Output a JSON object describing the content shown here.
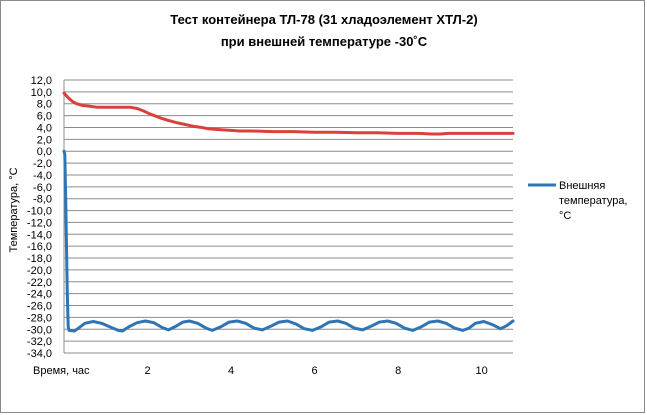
{
  "chart_data": {
    "type": "line",
    "title_lines": [
      "Тест контейнера ТЛ-78 (31 хладоэлемент ХТЛ-2)",
      "при внешней температуре -30˚С"
    ],
    "xlabel": "Время, час",
    "ylabel": "Температура, °С",
    "xlim": [
      0,
      10.75
    ],
    "ylim": [
      -34,
      12
    ],
    "y_ticks": [
      "12,0",
      "10,0",
      "8,0",
      "6,0",
      "4,0",
      "2,0",
      "0,0",
      "-2,0",
      "-4,0",
      "-6,0",
      "-8,0",
      "-10,0",
      "-12,0",
      "-14,0",
      "-16,0",
      "-18,0",
      "-20,0",
      "-22,0",
      "-24,0",
      "-26,0",
      "-28,0",
      "-30,0",
      "-32,0",
      "-34,0"
    ],
    "x_ticks": [
      {
        "value": 2,
        "label": "2"
      },
      {
        "value": 4,
        "label": "4"
      },
      {
        "value": 6,
        "label": "6"
      },
      {
        "value": 8,
        "label": "8"
      },
      {
        "value": 10,
        "label": "10"
      }
    ],
    "grid": "horizontal",
    "legend_position": "right",
    "series": [
      {
        "name": "Внешняя температура, °С",
        "legend_lines": [
          "Внешняя",
          "температура,",
          "°С"
        ],
        "color": "#2E75B6",
        "points": [
          [
            0,
            0
          ],
          [
            0.02,
            -0.5
          ],
          [
            0.04,
            -8
          ],
          [
            0.06,
            -16
          ],
          [
            0.08,
            -24
          ],
          [
            0.1,
            -29.5
          ],
          [
            0.12,
            -30.2
          ],
          [
            0.25,
            -30.3
          ],
          [
            0.35,
            -29.8
          ],
          [
            0.5,
            -29.0
          ],
          [
            0.7,
            -28.7
          ],
          [
            0.9,
            -29.0
          ],
          [
            1.1,
            -29.6
          ],
          [
            1.3,
            -30.2
          ],
          [
            1.4,
            -30.3
          ],
          [
            1.55,
            -29.6
          ],
          [
            1.75,
            -28.9
          ],
          [
            1.95,
            -28.6
          ],
          [
            2.15,
            -28.9
          ],
          [
            2.35,
            -29.7
          ],
          [
            2.5,
            -30.1
          ],
          [
            2.65,
            -29.6
          ],
          [
            2.85,
            -28.8
          ],
          [
            3.0,
            -28.6
          ],
          [
            3.2,
            -29.0
          ],
          [
            3.4,
            -29.8
          ],
          [
            3.55,
            -30.2
          ],
          [
            3.75,
            -29.6
          ],
          [
            3.95,
            -28.8
          ],
          [
            4.15,
            -28.6
          ],
          [
            4.35,
            -29.0
          ],
          [
            4.55,
            -29.8
          ],
          [
            4.75,
            -30.1
          ],
          [
            4.95,
            -29.5
          ],
          [
            5.15,
            -28.8
          ],
          [
            5.35,
            -28.6
          ],
          [
            5.55,
            -29.1
          ],
          [
            5.75,
            -29.9
          ],
          [
            5.95,
            -30.2
          ],
          [
            6.15,
            -29.6
          ],
          [
            6.35,
            -28.8
          ],
          [
            6.55,
            -28.6
          ],
          [
            6.75,
            -29.0
          ],
          [
            6.95,
            -29.8
          ],
          [
            7.15,
            -30.1
          ],
          [
            7.35,
            -29.5
          ],
          [
            7.55,
            -28.8
          ],
          [
            7.75,
            -28.6
          ],
          [
            7.95,
            -29.0
          ],
          [
            8.15,
            -29.8
          ],
          [
            8.35,
            -30.2
          ],
          [
            8.55,
            -29.6
          ],
          [
            8.75,
            -28.8
          ],
          [
            8.95,
            -28.6
          ],
          [
            9.15,
            -29.0
          ],
          [
            9.35,
            -29.8
          ],
          [
            9.55,
            -30.2
          ],
          [
            9.7,
            -29.8
          ],
          [
            9.85,
            -29.0
          ],
          [
            10.05,
            -28.7
          ],
          [
            10.25,
            -29.2
          ],
          [
            10.45,
            -29.9
          ],
          [
            10.6,
            -29.4
          ],
          [
            10.75,
            -28.6
          ]
        ]
      },
      {
        "name": "",
        "color": "#D9413C",
        "points": [
          [
            0,
            9.8
          ],
          [
            0.1,
            9.0
          ],
          [
            0.2,
            8.4
          ],
          [
            0.3,
            8.0
          ],
          [
            0.45,
            7.7
          ],
          [
            0.6,
            7.6
          ],
          [
            0.8,
            7.4
          ],
          [
            1.0,
            7.4
          ],
          [
            1.2,
            7.4
          ],
          [
            1.4,
            7.4
          ],
          [
            1.6,
            7.4
          ],
          [
            1.75,
            7.2
          ],
          [
            1.9,
            6.8
          ],
          [
            2.05,
            6.3
          ],
          [
            2.2,
            5.9
          ],
          [
            2.35,
            5.5
          ],
          [
            2.5,
            5.2
          ],
          [
            2.7,
            4.8
          ],
          [
            2.9,
            4.5
          ],
          [
            3.1,
            4.2
          ],
          [
            3.3,
            4.0
          ],
          [
            3.45,
            3.8
          ],
          [
            3.6,
            3.7
          ],
          [
            3.8,
            3.6
          ],
          [
            4.0,
            3.5
          ],
          [
            4.2,
            3.4
          ],
          [
            4.5,
            3.4
          ],
          [
            5.0,
            3.3
          ],
          [
            5.5,
            3.3
          ],
          [
            6.0,
            3.2
          ],
          [
            6.5,
            3.2
          ],
          [
            7.0,
            3.1
          ],
          [
            7.5,
            3.1
          ],
          [
            8.0,
            3.0
          ],
          [
            8.5,
            3.0
          ],
          [
            8.8,
            2.9
          ],
          [
            9.0,
            2.9
          ],
          [
            9.2,
            3.0
          ],
          [
            9.5,
            3.0
          ],
          [
            10.0,
            3.0
          ],
          [
            10.5,
            3.0
          ],
          [
            10.75,
            3.0
          ]
        ]
      }
    ]
  }
}
